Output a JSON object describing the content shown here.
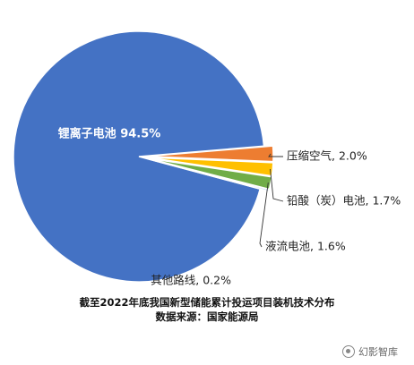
{
  "chart_data": {
    "type": "pie",
    "slices": [
      {
        "name": "锂离子电池",
        "value": 94.5,
        "label": "锂离子电池 94.5%",
        "color": "#4472C4"
      },
      {
        "name": "压缩空气",
        "value": 2.0,
        "label": "压缩空气, 2.0%",
        "color": "#ED7D31"
      },
      {
        "name": "铅酸（炭）电池",
        "value": 1.7,
        "label": "铅酸（炭）电池, 1.7%",
        "color": "#FFC000"
      },
      {
        "name": "液流电池",
        "value": 1.6,
        "label": "液流电池, 1.6%",
        "color": "#70AD47"
      },
      {
        "name": "其他路线",
        "value": 0.2,
        "label": "其他路线, 0.2%",
        "color": "#5B9BD5"
      }
    ],
    "exploded_slices": [
      "压缩空气",
      "铅酸（炭）电池",
      "液流电池",
      "其他路线"
    ],
    "legend": "none"
  },
  "caption": {
    "line1": "截至2022年底我国新型储能累计投运项目装机技术分布",
    "line2": "数据来源：国家能源局"
  },
  "watermark": {
    "text": "幻影智库",
    "icon": "wechat-icon"
  }
}
